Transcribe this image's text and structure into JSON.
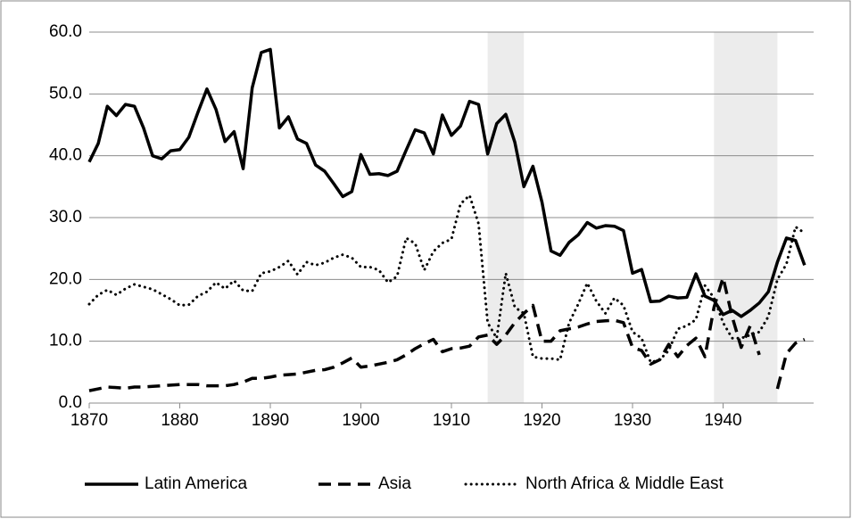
{
  "chart_data": {
    "type": "line",
    "x": [
      1870,
      1871,
      1872,
      1873,
      1874,
      1875,
      1876,
      1877,
      1878,
      1879,
      1880,
      1881,
      1882,
      1883,
      1884,
      1885,
      1886,
      1887,
      1888,
      1889,
      1890,
      1891,
      1892,
      1893,
      1894,
      1895,
      1896,
      1897,
      1898,
      1899,
      1900,
      1901,
      1902,
      1903,
      1904,
      1905,
      1906,
      1907,
      1908,
      1909,
      1910,
      1911,
      1912,
      1913,
      1914,
      1915,
      1916,
      1917,
      1918,
      1919,
      1920,
      1921,
      1922,
      1923,
      1924,
      1925,
      1926,
      1927,
      1928,
      1929,
      1930,
      1931,
      1932,
      1933,
      1934,
      1935,
      1936,
      1937,
      1938,
      1939,
      1940,
      1941,
      1942,
      1943,
      1944,
      1945,
      1946,
      1947,
      1948,
      1949
    ],
    "series": [
      {
        "name": "Latin America",
        "color": "#000000",
        "style": "solid",
        "values": [
          39,
          42,
          48,
          46.5,
          48.3,
          48,
          44.5,
          40,
          39.5,
          40.8,
          41,
          43,
          47,
          50.8,
          47.5,
          42.3,
          43.9,
          37.9,
          51,
          56.7,
          57.2,
          44.5,
          46.3,
          42.7,
          42,
          38.5,
          37.5,
          35.5,
          33.4,
          34.2,
          40.2,
          37,
          37.1,
          36.8,
          37.5,
          40.9,
          44.2,
          43.7,
          40.3,
          46.6,
          43.3,
          44.8,
          48.8,
          48.3,
          40.3,
          45.2,
          46.7,
          42.2,
          35,
          38.3,
          32.5,
          24.6,
          23.9,
          26,
          27.2,
          29.2,
          28.3,
          28.7,
          28.6,
          27.9,
          21,
          21.6,
          16.4,
          16.5,
          17.3,
          17,
          17.1,
          20.9,
          17.3,
          16.6,
          14.3,
          15,
          14,
          15,
          16.2,
          18,
          22.8,
          26.7,
          26.3,
          22.3
        ]
      },
      {
        "name": "Asia",
        "color": "#000000",
        "style": "dashed",
        "values": [
          2,
          2.3,
          2.6,
          2.5,
          2.4,
          2.6,
          2.6,
          2.7,
          2.8,
          2.9,
          3,
          3,
          3,
          2.8,
          2.8,
          2.8,
          3,
          3.4,
          4,
          4,
          4.2,
          4.5,
          4.6,
          4.7,
          5,
          5.3,
          5.4,
          5.8,
          6.5,
          7.3,
          5.8,
          6,
          6.3,
          6.6,
          7,
          7.8,
          8.8,
          9.6,
          10.3,
          8.3,
          8.8,
          8.9,
          9.2,
          10.7,
          11,
          9.5,
          11,
          13,
          14.5,
          15.8,
          10,
          10,
          11.7,
          12,
          12.3,
          12.8,
          13.2,
          13.3,
          13.4,
          13,
          9,
          8.5,
          6.3,
          7,
          9.5,
          7.5,
          9.3,
          10.5,
          7.5,
          15.5,
          20.3,
          14,
          9,
          12.5,
          7.8,
          null,
          2.3,
          8,
          9.7,
          10.3
        ]
      },
      {
        "name": "North Africa & Middle East",
        "color": "#000000",
        "style": "dotted",
        "values": [
          16,
          17.5,
          18.3,
          17.5,
          18.5,
          19.2,
          18.8,
          18.4,
          17.6,
          16.8,
          15.8,
          15.9,
          17.3,
          18,
          19.5,
          18.5,
          19.8,
          18.2,
          18.1,
          21,
          21.3,
          22,
          23,
          20.8,
          22.8,
          22.3,
          22.7,
          23.5,
          24,
          23.5,
          22,
          22,
          21.5,
          19.5,
          20.5,
          26.7,
          25.8,
          21.5,
          24.5,
          25.9,
          26.5,
          32.2,
          33.6,
          29,
          13,
          10.5,
          21,
          15.5,
          14.5,
          7.5,
          7.2,
          7.2,
          7,
          13,
          16,
          19.4,
          16.5,
          14.5,
          17,
          15.8,
          11.5,
          10.5,
          6.6,
          7,
          8.5,
          12,
          12.5,
          13.5,
          19,
          17,
          13,
          10.5,
          10.5,
          11,
          11.5,
          14,
          20,
          22.5,
          28.5,
          27.5
        ]
      }
    ],
    "shaded_periods": [
      [
        1914,
        1918
      ],
      [
        1939,
        1946
      ]
    ],
    "shade_color": "#ececec",
    "xlim": [
      1870,
      1950
    ],
    "xticks": [
      1870,
      1880,
      1890,
      1900,
      1910,
      1920,
      1930,
      1940
    ],
    "ylim": [
      0,
      60
    ],
    "yticks": [
      {
        "value": 0,
        "label": "0.0"
      },
      {
        "value": 10,
        "label": "10.0"
      },
      {
        "value": 20,
        "label": "20.0"
      },
      {
        "value": 30,
        "label": "30.0"
      },
      {
        "value": 40,
        "label": "40.0"
      },
      {
        "value": 50,
        "label": "50.0"
      },
      {
        "value": 60,
        "label": "60.0"
      }
    ],
    "grid": true,
    "legend": "bottom"
  }
}
